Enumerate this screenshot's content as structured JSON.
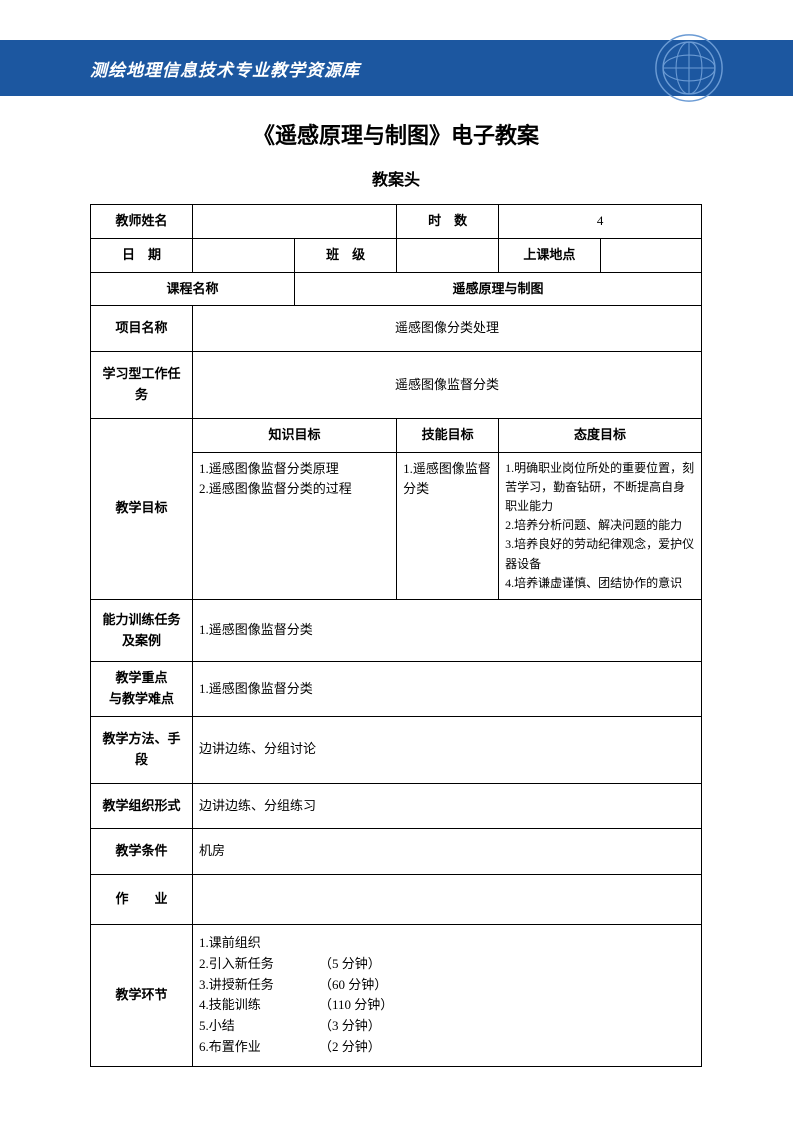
{
  "colors": {
    "header_bg": "#1c57a0",
    "header_text": "#ffffff",
    "page_bg": "#ffffff",
    "border": "#000000",
    "text": "#000000",
    "logo_stroke": "#4a7fc2"
  },
  "header": {
    "title": "测绘地理信息技术专业教学资源库"
  },
  "doc": {
    "title": "《遥感原理与制图》电子教案",
    "subtitle": "教案头"
  },
  "labels": {
    "teacher": "教师姓名",
    "hours": "时　数",
    "date": "日　期",
    "class": "班　级",
    "location": "上课地点",
    "course_name": "课程名称",
    "project_name": "项目名称",
    "task": "学习型工作任务",
    "goal": "教学目标",
    "knowledge_goal": "知识目标",
    "skill_goal": "技能目标",
    "attitude_goal": "态度目标",
    "ability_task": "能力训练任务\n及案例",
    "ability_task_line1": "能力训练任务",
    "ability_task_line2": "及案例",
    "key_diff_line1": "教学重点",
    "key_diff_line2": "与教学难点",
    "method": "教学方法、手段",
    "org_form": "教学组织形式",
    "condition": "教学条件",
    "homework": "作　　业",
    "steps": "教学环节"
  },
  "values": {
    "hours": "4",
    "course_name": "遥感原理与制图",
    "project_name": "遥感图像分类处理",
    "task": "遥感图像监督分类",
    "knowledge_goals": "1.遥感图像监督分类原理\n2.遥感图像监督分类的过程",
    "skill_goals": "1.遥感图像监督分类",
    "attitude_goals": "1.明确职业岗位所处的重要位置，刻苦学习，勤奋钻研，不断提高自身职业能力\n2.培养分析问题、解决问题的能力\n3.培养良好的劳动纪律观念，爱护仪器设备\n4.培养谦虚谨慎、团结协作的意识",
    "ability_task": "1.遥感图像监督分类",
    "key_diff": "1.遥感图像监督分类",
    "method": "边讲边练、分组讨论",
    "org_form": "边讲边练、分组练习",
    "condition": "机房",
    "homework": "",
    "steps": [
      {
        "name": "1.课前组织",
        "time": ""
      },
      {
        "name": "2.引入新任务",
        "time": "（5 分钟）"
      },
      {
        "name": "3.讲授新任务",
        "time": "（60 分钟）"
      },
      {
        "name": "4.技能训练",
        "time": "（110 分钟）"
      },
      {
        "name": "5.小结",
        "time": "（3 分钟）"
      },
      {
        "name": "6.布置作业",
        "time": "（2 分钟）"
      }
    ]
  }
}
